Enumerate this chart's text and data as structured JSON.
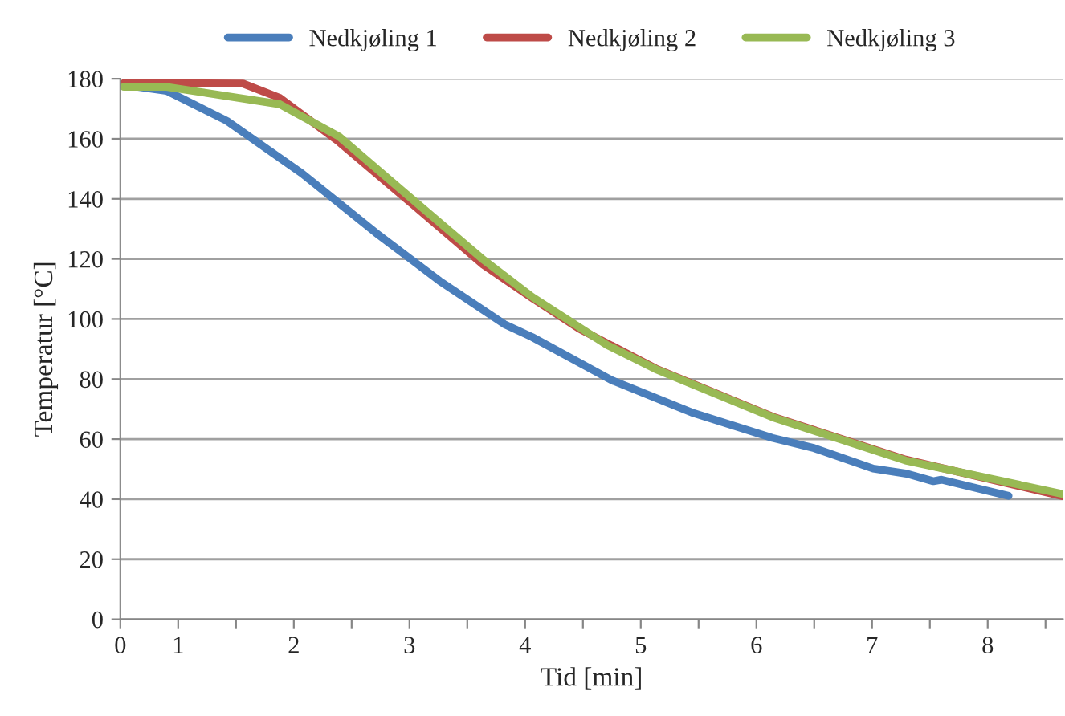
{
  "chart_data": {
    "type": "line",
    "xlabel": "Tid [min]",
    "ylabel": "Temperatur [°C]",
    "xlim": [
      0.5,
      8.65
    ],
    "xticks": [
      {
        "value": 0.5,
        "label": "0"
      },
      1,
      {
        "value": 1.5,
        "label": null
      },
      2,
      {
        "value": 2.5,
        "label": null
      },
      3,
      {
        "value": 3.5,
        "label": null
      },
      4,
      {
        "value": 4.5,
        "label": null
      },
      5,
      {
        "value": 5.5,
        "label": null
      },
      6,
      {
        "value": 6.5,
        "label": null
      },
      7,
      {
        "value": 7.5,
        "label": null
      },
      8,
      {
        "value": 8.5,
        "label": null
      }
    ],
    "ylim": [
      0,
      180
    ],
    "yticks": [
      0,
      20,
      40,
      60,
      80,
      100,
      120,
      140,
      160,
      180
    ],
    "grid": "y",
    "legend": "top",
    "marker": "none",
    "line_style": "solid",
    "series": [
      {
        "name": "Nedkjøling 1",
        "color": "#4a7ebb",
        "x": [
          0.53,
          0.9,
          1.42,
          2.07,
          2.71,
          3.26,
          3.82,
          4.06,
          4.75,
          5.44,
          6.14,
          6.5,
          7.01,
          7.3,
          7.53,
          7.6,
          8.18
        ],
        "values": [
          178,
          176,
          166,
          148.5,
          128.7,
          112.7,
          98.3,
          94,
          79.6,
          68.9,
          60.4,
          57,
          50.2,
          48.5,
          46,
          46.5,
          41.1
        ]
      },
      {
        "name": "Nedkjøling 2",
        "color": "#be4b48",
        "x": [
          0.53,
          0.9,
          1.56,
          1.88,
          2.39,
          2.99,
          3.64,
          4.06,
          4.47,
          5.13,
          6.14,
          7.29,
          8.65
        ],
        "values": [
          178.5,
          178.5,
          178.4,
          173.6,
          159,
          139.4,
          118,
          107,
          96.7,
          83.5,
          67.5,
          53.2,
          41
        ]
      },
      {
        "name": "Nedkjøling 3",
        "color": "#98b954",
        "x": [
          0.53,
          0.9,
          1.88,
          2.39,
          2.99,
          3.64,
          4.06,
          4.71,
          5.13,
          6.14,
          7.29,
          8.65
        ],
        "values": [
          177.3,
          177.3,
          171.5,
          160.8,
          141,
          119.7,
          107.4,
          91.3,
          83.3,
          67.3,
          52.9,
          41.7
        ]
      }
    ]
  }
}
